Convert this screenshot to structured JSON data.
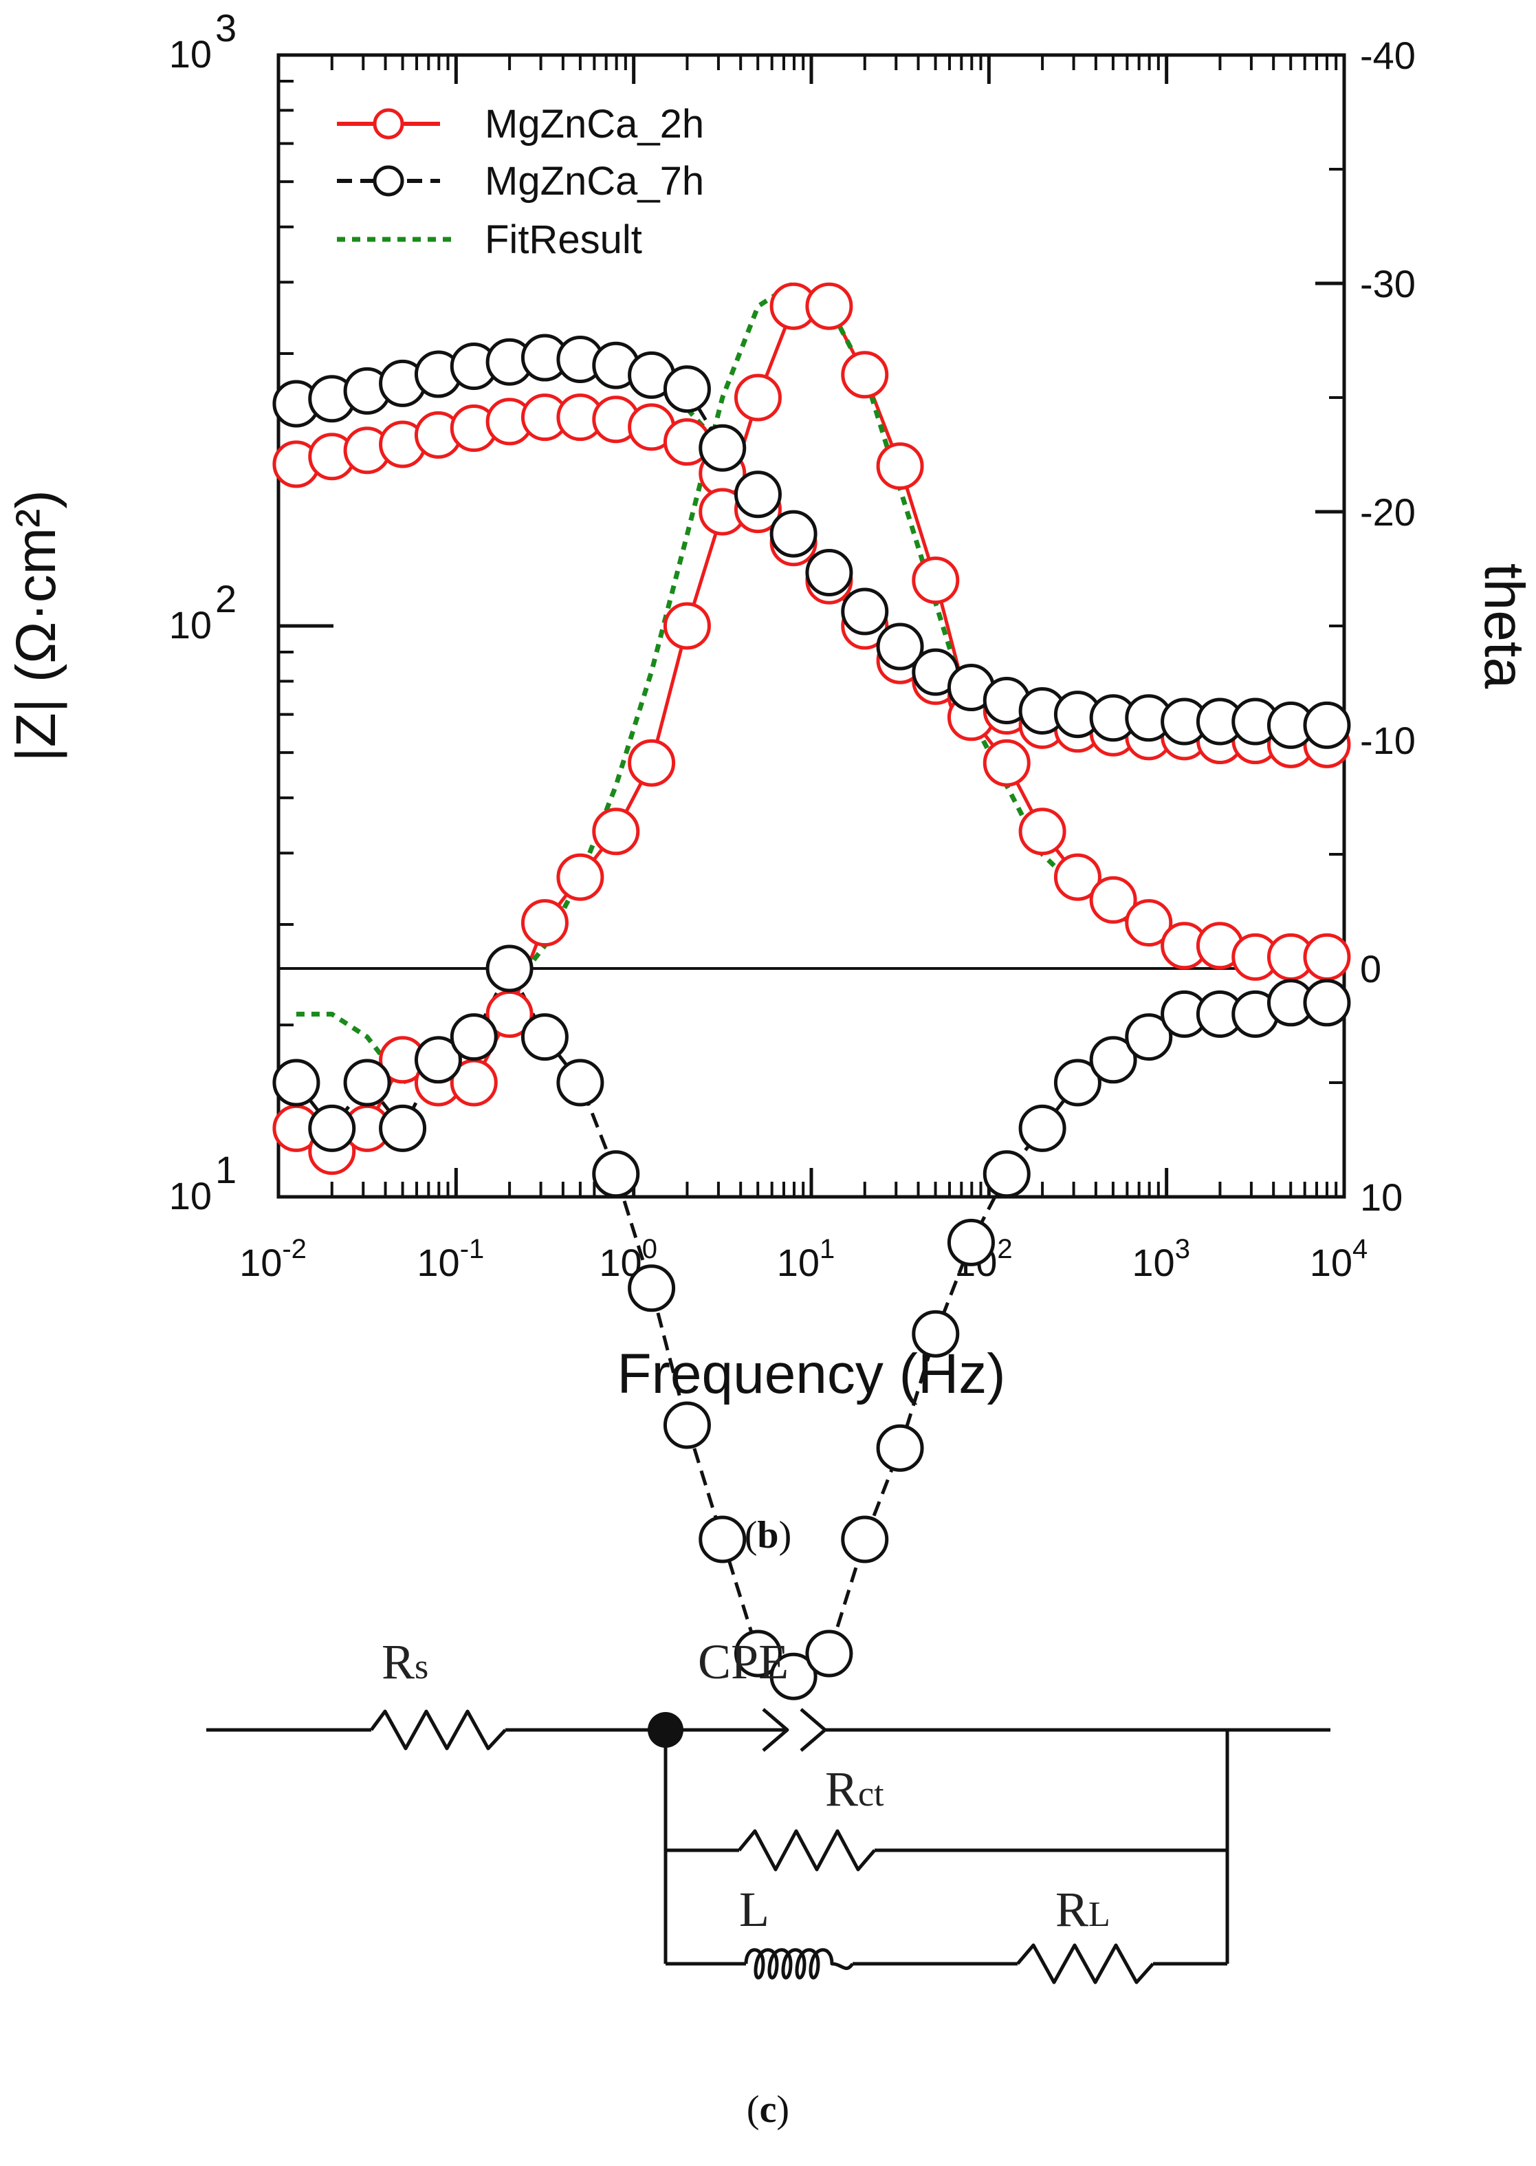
{
  "chart_data": {
    "type": "line",
    "xlabel": "Frequency (Hz)",
    "ylabel": "|Z| (Ω·cm²)",
    "y2label": "theta",
    "x_scale": "log",
    "xlim": [
      0.01,
      10000
    ],
    "y_scale": "log",
    "ylim": [
      10,
      1000
    ],
    "y2lim": [
      10,
      -40
    ],
    "x_ticks": [
      {
        "value": 0.01,
        "base": "10",
        "exp": "-2"
      },
      {
        "value": 0.1,
        "base": "10",
        "exp": "-1"
      },
      {
        "value": 1,
        "base": "10",
        "exp": "0"
      },
      {
        "value": 10,
        "base": "10",
        "exp": "1"
      },
      {
        "value": 100,
        "base": "10",
        "exp": "2"
      },
      {
        "value": 1000,
        "base": "10",
        "exp": "3"
      },
      {
        "value": 10000,
        "base": "10",
        "exp": "4"
      }
    ],
    "y_ticks": [
      {
        "value": 10,
        "base": "10",
        "exp": "1"
      },
      {
        "value": 100,
        "base": "10",
        "exp": "2"
      },
      {
        "value": 1000,
        "base": "10",
        "exp": "3"
      }
    ],
    "y2_ticks": [
      {
        "value": -40,
        "label": "-40"
      },
      {
        "value": -30,
        "label": "-30"
      },
      {
        "value": -20,
        "label": "-20"
      },
      {
        "value": -10,
        "label": "-10"
      },
      {
        "value": 0,
        "label": "0"
      },
      {
        "value": 10,
        "label": "10"
      }
    ],
    "zero_line_theta": 0,
    "series": [
      {
        "name": "MgZnCa_2h",
        "color": "#ee1c1c",
        "marker": "open-circle",
        "line": "solid",
        "freq": [
          0.0126,
          0.02,
          0.0316,
          0.05,
          0.0794,
          0.126,
          0.2,
          0.316,
          0.5,
          0.794,
          1.26,
          2,
          3.16,
          5.01,
          7.94,
          12.6,
          20,
          31.6,
          50.1,
          79.4,
          126,
          200,
          316,
          501,
          794,
          1260,
          2000,
          3160,
          5010,
          8000
        ],
        "impedance": [
          192,
          198,
          203,
          208,
          216,
          222,
          228,
          232,
          232,
          230,
          223,
          210,
          185,
          160,
          140,
          120,
          100,
          87,
          80,
          75,
          71,
          67,
          66,
          65,
          64,
          64,
          63,
          63,
          62,
          62
        ],
        "theta": [
          7,
          8,
          7,
          4,
          5,
          5,
          2,
          -2,
          -4,
          -6,
          -9,
          -15,
          -20,
          -25,
          -29,
          -29,
          -26,
          -22,
          -17,
          -11,
          -9,
          -6,
          -4,
          -3,
          -2,
          -1,
          -1,
          -0.5,
          -0.5,
          -0.5
        ]
      },
      {
        "name": "MgZnCa_7h",
        "color": "#111111",
        "marker": "open-circle",
        "line": "dashed",
        "freq": [
          0.0126,
          0.02,
          0.0316,
          0.05,
          0.0794,
          0.126,
          0.2,
          0.316,
          0.5,
          0.794,
          1.26,
          2,
          3.16,
          5.01,
          7.94,
          12.6,
          20,
          31.6,
          50.1,
          79.4,
          126,
          200,
          316,
          501,
          794,
          1260,
          2000,
          3160,
          5010,
          8000
        ],
        "impedance": [
          245,
          250,
          258,
          266,
          276,
          285,
          290,
          295,
          293,
          286,
          275,
          260,
          205,
          170,
          145,
          124,
          106,
          92,
          83,
          78,
          74,
          71,
          70,
          69,
          69,
          68,
          68,
          68,
          67,
          67
        ],
        "theta": [
          5,
          7,
          5,
          7,
          4,
          3,
          0,
          3,
          5,
          9,
          14,
          20,
          25,
          30,
          31,
          30,
          25,
          21,
          16,
          12,
          9,
          7,
          5,
          4,
          3,
          2,
          2,
          2,
          1.5,
          1.5
        ]
      },
      {
        "name": "FitResult",
        "color": "#1a8a1a",
        "marker": "none",
        "line": "dotted",
        "freq": [
          0.0126,
          0.02,
          0.0316,
          0.05,
          0.0794,
          0.126,
          0.2,
          0.316,
          0.5,
          0.794,
          1.26,
          2,
          3.16,
          5.01,
          7.94,
          12.6,
          20,
          31.6,
          50.1,
          79.4,
          126,
          200,
          316,
          501,
          794,
          1260,
          2000,
          3160,
          5010,
          8000
        ],
        "impedance": [
          245,
          252,
          262,
          272,
          282,
          290,
          295,
          296,
          292,
          282,
          265,
          240,
          205,
          170,
          145,
          124,
          106,
          92,
          83,
          78,
          74,
          71,
          70,
          69,
          69,
          68,
          68,
          68,
          67,
          67
        ],
        "theta": [
          2,
          2,
          3,
          5,
          4,
          3,
          1,
          -1,
          -4,
          -8,
          -13,
          -19,
          -25,
          -29,
          -30,
          -29,
          -26,
          -21,
          -16,
          -11,
          -8,
          -5,
          -3.5,
          -2.5,
          -1.5,
          -1,
          -0.5,
          -0.3,
          -0.2,
          -0.1
        ]
      }
    ]
  },
  "legend": {
    "items": [
      {
        "label": "MgZnCa_2h"
      },
      {
        "label": "MgZnCa_7h"
      },
      {
        "label": "FitResult"
      }
    ]
  },
  "captions": {
    "b_open": "(",
    "b_letter": "b",
    "b_close": ")",
    "c_open": "(",
    "c_letter": "c",
    "c_close": ")"
  },
  "circuit": {
    "rs_main": "R",
    "rs_sub": "s",
    "cpe": "CPE",
    "rct_main": "R",
    "rct_sub": "ct",
    "l": "L",
    "rl_main": "R",
    "rl_sub": "L"
  }
}
